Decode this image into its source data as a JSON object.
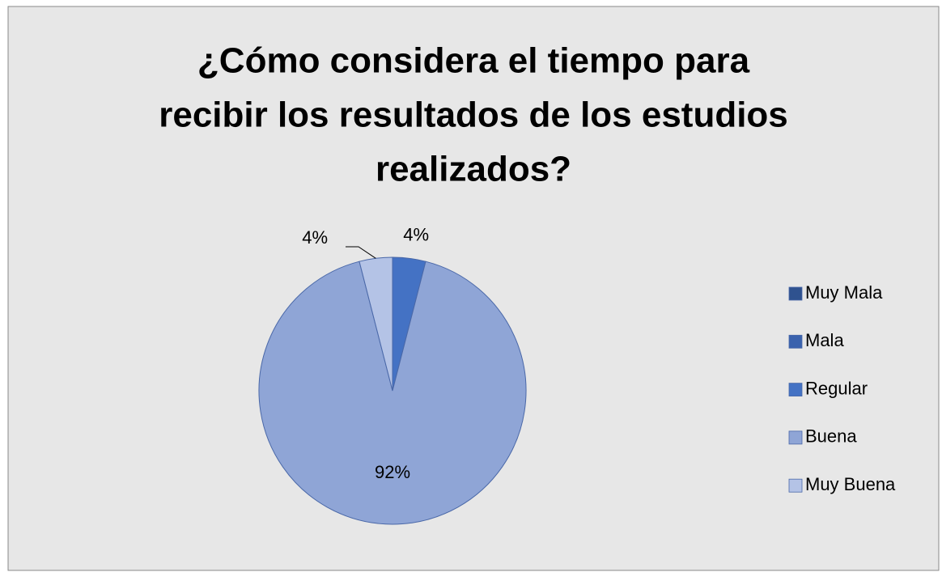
{
  "chart_data": {
    "type": "pie",
    "title": [
      "¿Cómo considera el tiempo para",
      "recibir los resultados de los estudios",
      "realizados?"
    ],
    "categories": [
      "Muy Mala",
      "Mala",
      "Regular",
      "Buena",
      "Muy Buena"
    ],
    "values": [
      0,
      0,
      4,
      92,
      4
    ],
    "value_labels": [
      null,
      null,
      "4%",
      "92%",
      "4%"
    ],
    "colors": [
      "#2f528f",
      "#3a62ad",
      "#4472c4",
      "#8fa5d6",
      "#b4c3e6"
    ],
    "legend": "right"
  }
}
